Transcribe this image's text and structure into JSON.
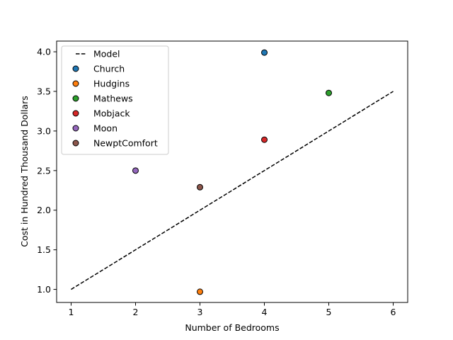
{
  "chart_data": {
    "type": "scatter",
    "title": "",
    "xlabel": "Number of Bedrooms",
    "ylabel": "Cost in Hundred Thousand Dollars",
    "xlim": [
      0.775,
      6.225
    ],
    "ylim": [
      0.835,
      4.135
    ],
    "xticks": [
      1,
      2,
      3,
      4,
      5,
      6
    ],
    "yticks": [
      1.0,
      1.5,
      2.0,
      2.5,
      3.0,
      3.5,
      4.0
    ],
    "xtick_labels": [
      "1",
      "2",
      "3",
      "4",
      "5",
      "6"
    ],
    "ytick_labels": [
      "1.0",
      "1.5",
      "2.0",
      "2.5",
      "3.0",
      "3.5",
      "4.0"
    ],
    "grid": false,
    "legend_position": "upper-left",
    "model": {
      "name": "Model",
      "x": [
        1,
        6
      ],
      "y": [
        1.0,
        3.5
      ],
      "color": "#000000",
      "style": "dashed"
    },
    "series": [
      {
        "name": "Church",
        "x": [
          4
        ],
        "y": [
          3.99
        ],
        "color": "#1f77b4"
      },
      {
        "name": "Hudgins",
        "x": [
          3
        ],
        "y": [
          0.97
        ],
        "color": "#ff7f0e"
      },
      {
        "name": "Mathews",
        "x": [
          5
        ],
        "y": [
          3.48
        ],
        "color": "#2ca02c"
      },
      {
        "name": "Mobjack",
        "x": [
          4
        ],
        "y": [
          2.89
        ],
        "color": "#d62728"
      },
      {
        "name": "Moon",
        "x": [
          2
        ],
        "y": [
          2.5
        ],
        "color": "#9467bd"
      },
      {
        "name": "NewptComfort",
        "x": [
          3
        ],
        "y": [
          2.29
        ],
        "color": "#8c564b"
      }
    ]
  }
}
